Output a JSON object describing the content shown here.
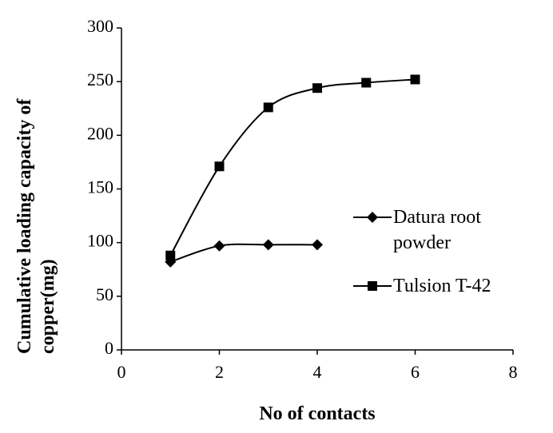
{
  "chart_data": {
    "type": "line",
    "xlabel": "No of contacts",
    "ylabel": "Cumulative loading capacity of copper(mg)",
    "xlim": [
      0,
      8
    ],
    "xticks": [
      0,
      2,
      4,
      6,
      8
    ],
    "ylim": [
      0,
      300
    ],
    "yticks": [
      0,
      50,
      100,
      150,
      200,
      250,
      300
    ],
    "series": [
      {
        "name": "Datura root powder",
        "color": "#000000",
        "marker": "diamond",
        "x": [
          1,
          2,
          3,
          4
        ],
        "values": [
          82,
          97,
          98,
          98
        ]
      },
      {
        "name": "Tulsion T-42",
        "color": "#000000",
        "marker": "square",
        "x": [
          1,
          2,
          3,
          4,
          5,
          6
        ],
        "values": [
          88,
          171,
          226,
          244,
          249,
          252
        ]
      }
    ]
  }
}
